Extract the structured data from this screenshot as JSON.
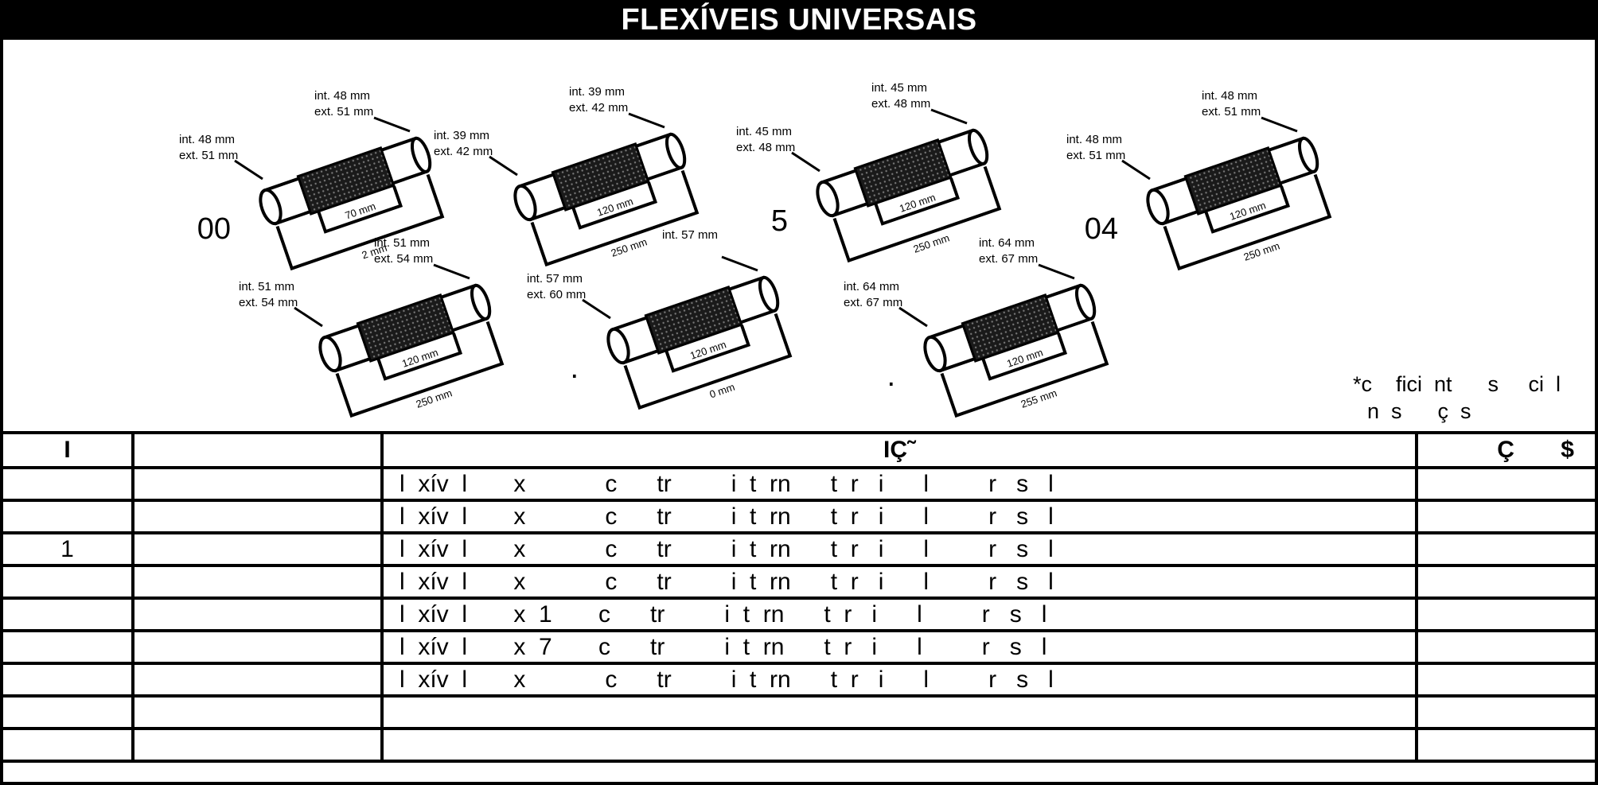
{
  "header": {
    "title": "FLEXÍVEIS UNIVERSAIS"
  },
  "figures": [
    {
      "code": "00",
      "left": [
        "int. 48 mm",
        "ext. 51 mm"
      ],
      "right": [
        "int. 48 mm",
        "ext. 51 mm"
      ],
      "inner": "70 mm",
      "outer": "2   mm"
    },
    {
      "code": "",
      "left": [
        "int. 39 mm",
        "ext. 42 mm"
      ],
      "right": [
        "int. 39 mm",
        "ext. 42 mm"
      ],
      "inner": "120 mm",
      "outer": "250 mm"
    },
    {
      "code": "5",
      "left": [
        "int. 45 mm",
        "ext. 48 mm"
      ],
      "right": [
        "int. 45 mm",
        "ext. 48 mm"
      ],
      "inner": "120 mm",
      "outer": "250 mm"
    },
    {
      "code": "04",
      "left": [
        "int. 48 mm",
        "ext. 51 mm"
      ],
      "right": [
        "int. 48 mm",
        "ext. 51 mm"
      ],
      "inner": "120 mm",
      "outer": "250 mm"
    },
    {
      "code": "",
      "left": [
        "int. 51 mm",
        "ext. 54 mm"
      ],
      "right": [
        "int. 51 mm",
        "ext. 54 mm"
      ],
      "inner": "120 mm",
      "outer": "250 mm"
    },
    {
      "code": ".",
      "left": [
        "int. 57 mm",
        "ext. 60 mm"
      ],
      "right": [
        "int. 57 mm",
        ""
      ],
      "inner": "120 mm",
      "outer": "0 mm"
    },
    {
      "code": ".",
      "left": [
        "int. 64 mm",
        "ext. 67 mm"
      ],
      "right": [
        "int. 64 mm",
        "ext. 67 mm"
      ],
      "inner": "120 mm",
      "outer": "255 mm"
    }
  ],
  "note": {
    "line1": "*c    fici  nt      s     ci  l",
    "line2": "n  s      ç  s"
  },
  "table": {
    "headers": [
      "I",
      "",
      "IÇ˜",
      "Ç       $"
    ],
    "rows": [
      {
        "col1": "",
        "col2": "",
        "desc": "l  xív  l       x            c      tr         i  t  rn      t  r   i      l         r   s   l",
        "price": ""
      },
      {
        "col1": "",
        "col2": "",
        "desc": "l  xív  l       x            c      tr         i  t  rn      t  r   i      l         r   s   l",
        "price": ""
      },
      {
        "col1": "1",
        "col2": "",
        "desc": "l  xív  l       x            c      tr         i  t  rn      t  r   i      l         r   s   l",
        "price": ""
      },
      {
        "col1": "",
        "col2": "",
        "desc": "l  xív  l       x            c      tr         i  t  rn      t  r   i      l         r   s   l",
        "price": ""
      },
      {
        "col1": "",
        "col2": "",
        "desc": "l  xív  l       x  1       c      tr         i  t  rn      t  r   i      l         r   s   l",
        "price": ""
      },
      {
        "col1": "",
        "col2": "",
        "desc": "l  xív  l       x  7       c      tr         i  t  rn      t  r   i      l         r   s   l",
        "price": ""
      },
      {
        "col1": "",
        "col2": "",
        "desc": "l  xív  l       x            c      tr         i  t  rn      t  r   i      l         r   s   l",
        "price": ""
      },
      {
        "col1": "",
        "col2": "",
        "desc": "",
        "price": ""
      },
      {
        "col1": "",
        "col2": "",
        "desc": "",
        "price": ""
      }
    ]
  }
}
